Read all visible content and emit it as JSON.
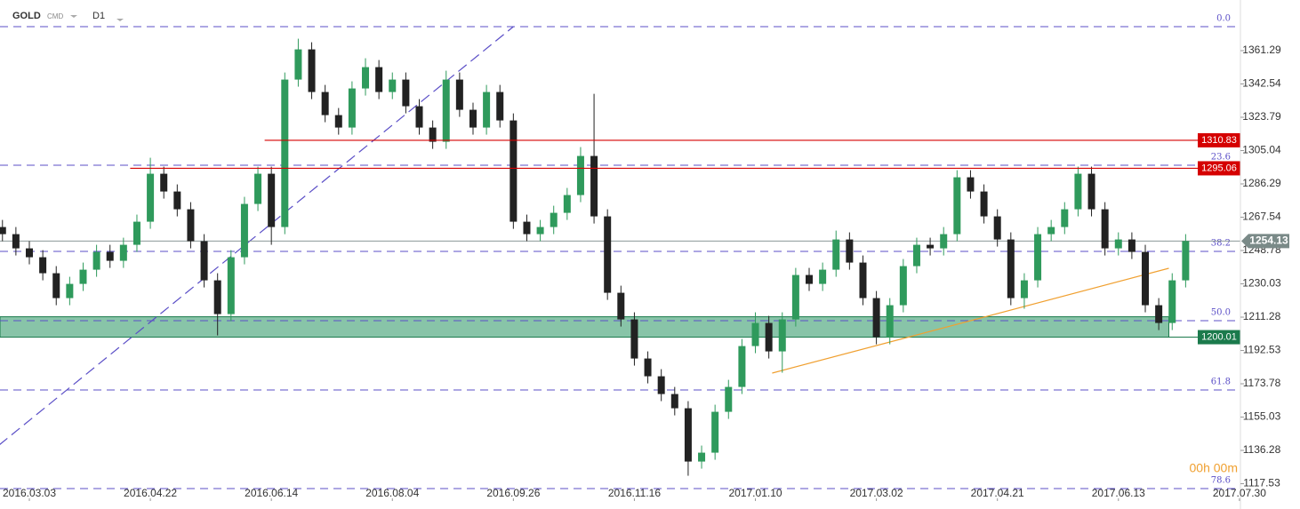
{
  "chart_data": {
    "type": "candlestick",
    "header": {
      "symbol": "GOLD",
      "market": "CMD",
      "interval": "D1"
    },
    "countdown": "00h 00m",
    "xlim": [
      -8.73,
      360.3
    ],
    "xticks": [
      {
        "value": 0,
        "label": "2016.03.03"
      },
      {
        "value": 36,
        "label": "2016.04.22"
      },
      {
        "value": 72,
        "label": "2016.06.14"
      },
      {
        "value": 108,
        "label": "2016.08.04"
      },
      {
        "value": 144,
        "label": "2016.09.26"
      },
      {
        "value": 180,
        "label": "2016.11.16"
      },
      {
        "value": 216,
        "label": "2017.01.10"
      },
      {
        "value": 252,
        "label": "2017.03.02"
      },
      {
        "value": 288,
        "label": "2017.04.21"
      },
      {
        "value": 324,
        "label": "2017.06.13"
      },
      {
        "value": 360,
        "label": "2017.07.30"
      }
    ],
    "ylim": [
      1109.79,
      1389.79
    ],
    "yticks": [
      1117.53,
      1136.28,
      1155.03,
      1173.78,
      1192.53,
      1211.28,
      1230.03,
      1248.78,
      1267.54,
      1286.29,
      1305.04,
      1323.79,
      1342.54,
      1361.29
    ],
    "up_color": "#2f9a5c",
    "down_color": "#222222",
    "x": [
      -8,
      -4,
      0,
      4,
      8,
      12,
      16,
      20,
      24,
      28,
      32,
      36,
      40,
      44,
      48,
      52,
      56,
      60,
      64,
      68,
      72,
      76,
      80,
      84,
      88,
      92,
      96,
      100,
      104,
      108,
      112,
      116,
      120,
      124,
      128,
      132,
      136,
      140,
      144,
      148,
      152,
      156,
      160,
      164,
      168,
      172,
      176,
      180,
      184,
      188,
      192,
      196,
      200,
      204,
      208,
      212,
      216,
      220,
      224,
      228,
      232,
      236,
      240,
      244,
      248,
      252,
      256,
      260,
      264,
      268,
      272,
      276,
      280,
      284,
      288,
      292,
      296,
      300,
      304,
      308,
      312,
      316,
      320,
      324,
      328,
      332,
      336,
      340,
      344
    ],
    "open": [
      1262,
      1258,
      1250,
      1245,
      1236,
      1222,
      1230,
      1238,
      1248,
      1243,
      1252,
      1265,
      1292,
      1282,
      1272,
      1254,
      1232,
      1213,
      1245,
      1275,
      1292,
      1262,
      1345,
      1362,
      1338,
      1325,
      1318,
      1340,
      1352,
      1338,
      1345,
      1330,
      1318,
      1310,
      1345,
      1328,
      1318,
      1338,
      1322,
      1265,
      1258,
      1262,
      1270,
      1280,
      1302,
      1268,
      1225,
      1210,
      1188,
      1178,
      1168,
      1160,
      1130,
      1135,
      1158,
      1172,
      1195,
      1208,
      1192,
      1210,
      1235,
      1230,
      1238,
      1255,
      1242,
      1222,
      1200,
      1218,
      1240,
      1252,
      1250,
      1258,
      1290,
      1282,
      1268,
      1255,
      1222,
      1232,
      1258,
      1262,
      1272,
      1292,
      1272,
      1250,
      1255,
      1248,
      1218,
      1208,
      1232
    ],
    "high": [
      1266,
      1262,
      1254,
      1249,
      1240,
      1234,
      1242,
      1252,
      1252,
      1256,
      1269,
      1301,
      1296,
      1286,
      1276,
      1258,
      1236,
      1249,
      1279,
      1296,
      1296,
      1349,
      1368,
      1366,
      1342,
      1329,
      1344,
      1357,
      1356,
      1349,
      1349,
      1334,
      1322,
      1350,
      1349,
      1332,
      1342,
      1342,
      1326,
      1269,
      1266,
      1274,
      1284,
      1307,
      1337,
      1272,
      1229,
      1214,
      1192,
      1182,
      1172,
      1164,
      1139,
      1162,
      1176,
      1199,
      1214,
      1212,
      1214,
      1239,
      1239,
      1242,
      1260,
      1259,
      1246,
      1226,
      1222,
      1244,
      1256,
      1256,
      1262,
      1294,
      1294,
      1286,
      1272,
      1259,
      1236,
      1262,
      1266,
      1276,
      1296,
      1296,
      1276,
      1259,
      1259,
      1252,
      1222,
      1236,
      1258
    ],
    "low": [
      1254,
      1246,
      1241,
      1232,
      1218,
      1218,
      1226,
      1234,
      1239,
      1239,
      1248,
      1261,
      1278,
      1268,
      1250,
      1228,
      1201,
      1209,
      1241,
      1271,
      1252,
      1258,
      1341,
      1334,
      1321,
      1314,
      1314,
      1336,
      1334,
      1334,
      1326,
      1314,
      1306,
      1306,
      1324,
      1314,
      1314,
      1318,
      1261,
      1254,
      1254,
      1258,
      1266,
      1276,
      1264,
      1221,
      1206,
      1184,
      1174,
      1164,
      1156,
      1122,
      1126,
      1131,
      1154,
      1168,
      1191,
      1188,
      1180,
      1206,
      1226,
      1226,
      1234,
      1238,
      1218,
      1196,
      1196,
      1214,
      1236,
      1246,
      1246,
      1254,
      1278,
      1264,
      1251,
      1218,
      1216,
      1228,
      1254,
      1258,
      1268,
      1268,
      1246,
      1246,
      1244,
      1214,
      1204,
      1204,
      1228
    ],
    "close": [
      1258,
      1250,
      1245,
      1236,
      1222,
      1230,
      1238,
      1248,
      1243,
      1252,
      1265,
      1292,
      1282,
      1272,
      1254,
      1232,
      1213,
      1245,
      1275,
      1292,
      1262,
      1345,
      1362,
      1338,
      1325,
      1318,
      1340,
      1352,
      1338,
      1345,
      1330,
      1318,
      1310,
      1345,
      1328,
      1318,
      1338,
      1322,
      1265,
      1258,
      1262,
      1270,
      1280,
      1302,
      1268,
      1225,
      1210,
      1188,
      1178,
      1168,
      1160,
      1130,
      1135,
      1158,
      1172,
      1195,
      1208,
      1192,
      1210,
      1235,
      1230,
      1238,
      1255,
      1242,
      1222,
      1200,
      1218,
      1240,
      1252,
      1250,
      1258,
      1290,
      1282,
      1268,
      1255,
      1222,
      1232,
      1258,
      1262,
      1272,
      1292,
      1272,
      1250,
      1255,
      1248,
      1218,
      1208,
      1232,
      1254.13
    ],
    "fib_levels": [
      {
        "value": 1374.79,
        "label": "0.0"
      },
      {
        "value": 1296.79,
        "label": "23.6"
      },
      {
        "value": 1248.29,
        "label": "38.2"
      },
      {
        "value": 1209.29,
        "label": "50.0"
      },
      {
        "value": 1170.29,
        "label": "61.8"
      },
      {
        "value": 1114.79,
        "label": "78.6"
      }
    ],
    "fib_color": "#5b4fc7",
    "price_lines": [
      {
        "value": 1310.83,
        "from": 70,
        "color": "#d50000"
      },
      {
        "value": 1295.06,
        "from": 30,
        "color": "#d50000"
      }
    ],
    "zone": {
      "low": 1200.01,
      "high": 1211.5,
      "to": 339,
      "color": "#88c4a8",
      "border": "#1b7a4c"
    },
    "trendlines": [
      {
        "x": [
          -9,
          144
        ],
        "y": [
          1139.29,
          1374.79
        ],
        "color": "#5b4fc7",
        "dashed": true
      },
      {
        "x": [
          221,
          339
        ],
        "y": [
          1179.79,
          1238.79
        ],
        "color": "#f0a030",
        "dashed": false
      }
    ]
  }
}
